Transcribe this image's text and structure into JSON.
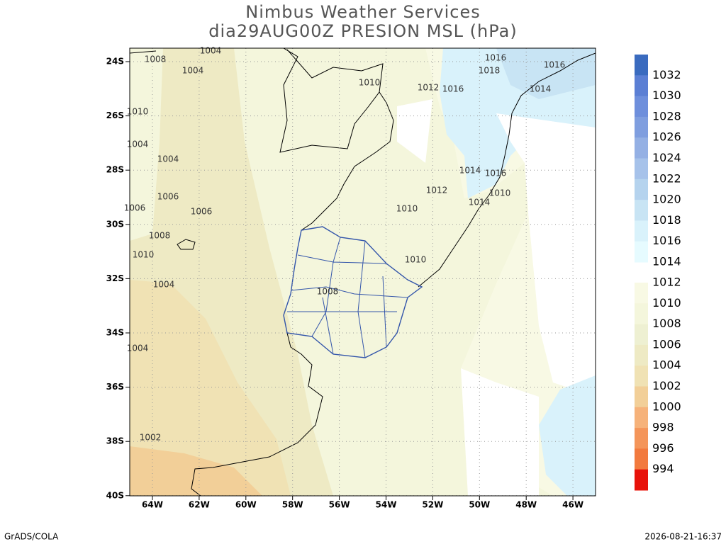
{
  "header": {
    "title": [
      "Nimbus Weather Services",
      "dia29AUG00Z PRESION MSL (hPa)"
    ]
  },
  "map": {
    "lat_labels": [
      "24S",
      "26S",
      "28S",
      "30S",
      "32S",
      "34S",
      "36S",
      "38S",
      "40S"
    ],
    "lon_labels": [
      "64W",
      "62W",
      "60W",
      "58W",
      "56W",
      "54W",
      "52W",
      "50W",
      "48W",
      "46W"
    ],
    "contour_labels": [
      "1004",
      "1008",
      "1004",
      "1010",
      "1012",
      "1016",
      "1016",
      "1018",
      "1016",
      "1014",
      "1010",
      "1004",
      "1004",
      "1014",
      "1016",
      "1012",
      "1010",
      "1014",
      "1010",
      "1006",
      "1006",
      "1006",
      "1008",
      "1010",
      "1010",
      "1004",
      "1008",
      "1004",
      "1002"
    ]
  },
  "colorbar": {
    "upper": {
      "levels": [
        1032,
        1030,
        1028,
        1026,
        1024,
        1022,
        1020,
        1018,
        1016,
        1014
      ],
      "colors": [
        "#3a6bbf",
        "#5b7fd4",
        "#6e8fdc",
        "#7f9edf",
        "#94b0e4",
        "#a6c2ea",
        "#b5d3ee",
        "#c8e4f4",
        "#d9f2fb",
        "#e6fbff"
      ]
    },
    "lower": {
      "levels": [
        1012,
        1010,
        1008,
        1006,
        1004,
        1002,
        1000,
        998,
        996,
        994
      ],
      "colors": [
        "#f8f9e4",
        "#f4f6dc",
        "#eef0d2",
        "#eeeac4",
        "#f0e2b4",
        "#f2cf98",
        "#f6b27a",
        "#f4955a",
        "#f27a3e",
        "#e8120a"
      ]
    }
  },
  "footer": {
    "left": "GrADS/COLA",
    "right": "2026-08-21-16:37"
  }
}
